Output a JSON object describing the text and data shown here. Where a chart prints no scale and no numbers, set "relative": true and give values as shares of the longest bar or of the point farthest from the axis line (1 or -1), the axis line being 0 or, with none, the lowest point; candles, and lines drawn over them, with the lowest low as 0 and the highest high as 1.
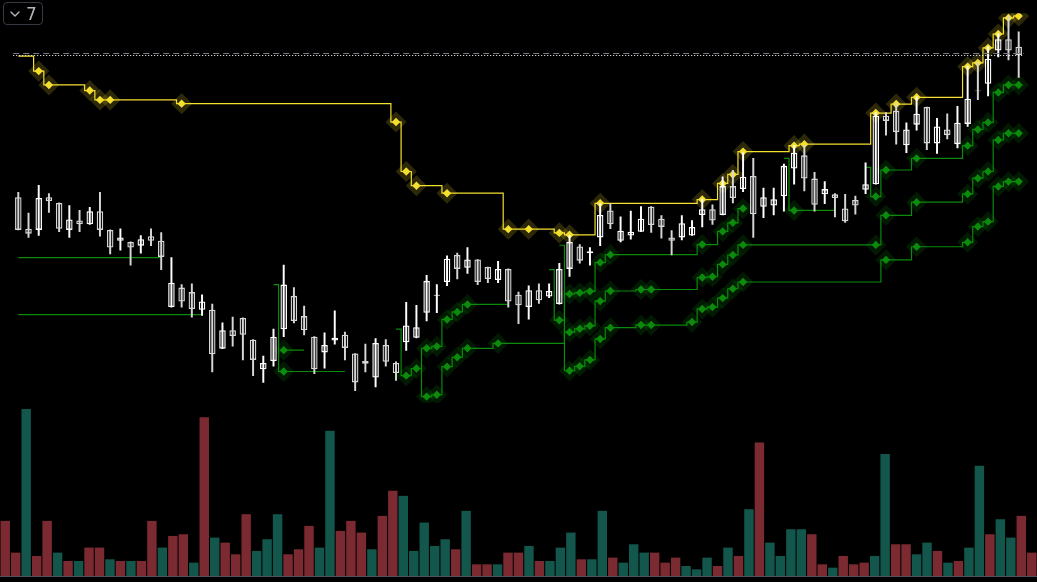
{
  "chart_data": [
    {
      "type": "candlestick",
      "categories": [
        null,
        null,
        null,
        null,
        null,
        null,
        null,
        null,
        null,
        null,
        null,
        null,
        null,
        null,
        null,
        null,
        null,
        null,
        null,
        null,
        null,
        null,
        null,
        null,
        null,
        null,
        null,
        null,
        null,
        null,
        null,
        null,
        null,
        null,
        null,
        null,
        null,
        null,
        null,
        null,
        null,
        null,
        null,
        null,
        null,
        null,
        null,
        null,
        null,
        null,
        null,
        null,
        null,
        null,
        null,
        null,
        null,
        null,
        null,
        null,
        null,
        null,
        null,
        null,
        null,
        null,
        null,
        null,
        null,
        null,
        null,
        null,
        null,
        null,
        null,
        null,
        null,
        null,
        null,
        null,
        null,
        null,
        null,
        null,
        null,
        null,
        null,
        null,
        null,
        null,
        null,
        null,
        null,
        null,
        null,
        null,
        null,
        null,
        null
      ],
      "relative": true,
      "tick_labels": false,
      "annotations": [
        "7"
      ],
      "ref_lines": [
        {
          "axis": "y",
          "value": 0.901,
          "color": "#787b86",
          "line_style": "dashed"
        },
        {
          "axis": "y",
          "value": 0.896,
          "color": "#ffffff",
          "line_style": "dotted"
        }
      ],
      "series": [
        {
          "colors": [
            "#d6d6d6",
            "#d6d6d6",
            "#ffffff",
            "#d6d6d6",
            "#d6d6d6",
            "#ffffff",
            "#d6d6d6",
            "#ffffff",
            "#d6d6d6",
            "#d6d6d6",
            "#ffffff",
            "#d6d6d6",
            "#ffffff",
            "#d6d6d6",
            "#d6d6d6",
            "#ffffff",
            "#d6d6d6",
            "#d6d6d6",
            "#ffffff",
            "#d6d6d6",
            "#ffffff",
            "#d6d6d6",
            "#d6d6d6",
            "#d6d6d6",
            "#ffffff",
            "#ffffff",
            "#ffffff",
            "#d6d6d6",
            "#d6d6d6",
            "#d6d6d6",
            "#ffffff",
            "#ffffff",
            "#d6d6d6",
            "#d6d6d6",
            "#d6d6d6",
            "#ffffff",
            "#d6d6d6",
            "#d6d6d6",
            "#ffffff",
            "#ffffff",
            "#ffffff",
            "#ffffff",
            "#ffffff",
            "#d6d6d6",
            "#ffffff",
            "#d6d6d6",
            "#d6d6d6",
            "#ffffff",
            "#d6d6d6",
            "#d6d6d6",
            "#ffffff",
            "#d6d6d6",
            "#ffffff",
            "#ffffff",
            "#ffffff",
            "#d6d6d6",
            "#ffffff",
            "#ffffff",
            "#d6d6d6",
            "#ffffff",
            "#ffffff",
            "#ffffff",
            "#d6d6d6",
            "#d6d6d6",
            "#d6d6d6",
            "#ffffff",
            "#ffffff",
            "#ffffff",
            "#d6d6d6",
            "#ffffff",
            "#d6d6d6",
            "#ffffff",
            "#d6d6d6",
            "#ffffff",
            "#ffffff",
            "#ffffff",
            "#ffffff",
            "#d6d6d6",
            "#d6d6d6",
            "#ffffff",
            "#d6d6d6",
            "#d6d6d6",
            "#d6d6d6",
            "#ffffff",
            "#ffffff",
            "#d6d6d6",
            "#d6d6d6",
            "#ffffff",
            "#ffffff",
            "#d6d6d6",
            "#ffffff",
            "#d6d6d6",
            "#ffffff",
            "#ffffff",
            "#d6d6d6",
            "#ffffff",
            "#ffffff",
            "#d6d6d6",
            "#d6d6d6"
          ],
          "ohlc": [
            [
              0.516,
              0.529,
              0.429,
              0.429
            ],
            [
              0.432,
              0.474,
              0.409,
              0.419
            ],
            [
              0.429,
              0.548,
              0.414,
              0.514
            ],
            [
              0.516,
              0.526,
              0.476,
              0.506
            ],
            [
              0.501,
              0.501,
              0.424,
              0.432
            ],
            [
              0.429,
              0.494,
              0.409,
              0.457
            ],
            [
              0.454,
              0.481,
              0.424,
              0.444
            ],
            [
              0.444,
              0.489,
              0.444,
              0.479
            ],
            [
              0.479,
              0.529,
              0.412,
              0.429
            ],
            [
              0.429,
              0.429,
              0.365,
              0.382
            ],
            [
              0.4,
              0.432,
              0.375,
              0.409
            ],
            [
              0.397,
              0.397,
              0.335,
              0.382
            ],
            [
              0.387,
              0.414,
              0.367,
              0.404
            ],
            [
              0.412,
              0.432,
              0.387,
              0.4
            ],
            [
              0.4,
              0.422,
              0.323,
              0.357
            ],
            [
              0.223,
              0.355,
              0.223,
              0.288
            ],
            [
              0.275,
              0.283,
              0.223,
              0.238
            ],
            [
              0.263,
              0.285,
              0.196,
              0.218
            ],
            [
              0.216,
              0.256,
              0.201,
              0.238
            ],
            [
              0.216,
              0.231,
              0.05,
              0.097
            ],
            [
              0.112,
              0.181,
              0.112,
              0.161
            ],
            [
              0.161,
              0.196,
              0.119,
              0.146
            ],
            [
              0.194,
              0.194,
              0.082,
              0.149
            ],
            [
              0.136,
              0.136,
              0.04,
              0.082
            ],
            [
              0.057,
              0.092,
              0.022,
              0.074
            ],
            [
              0.079,
              0.164,
              0.065,
              0.144
            ],
            [
              0.164,
              0.335,
              0.144,
              0.283
            ],
            [
              0.253,
              0.275,
              0.181,
              0.186
            ],
            [
              0.199,
              0.226,
              0.149,
              0.161
            ],
            [
              0.144,
              0.144,
              0.045,
              0.057
            ],
            [
              0.102,
              0.154,
              0.06,
              0.122
            ],
            [
              0.134,
              0.213,
              0.124,
              0.141
            ],
            [
              0.149,
              0.156,
              0.082,
              0.114
            ],
            [
              0.099,
              0.099,
              0,
              0.022
            ],
            [
              0.079,
              0.124,
              0.05,
              0.072
            ],
            [
              0.035,
              0.139,
              0.01,
              0.127
            ],
            [
              0.122,
              0.136,
              0.065,
              0.077
            ],
            [
              0.074,
              0.077,
              0.027,
              0.047
            ],
            [
              0.129,
              0.236,
              0.107,
              0.174
            ],
            [
              0.141,
              0.228,
              0.141,
              0.169
            ],
            [
              0.208,
              0.308,
              0.186,
              0.293
            ],
            [
              0.253,
              0.283,
              0.208,
              0.256
            ],
            [
              0.29,
              0.36,
              0.28,
              0.352
            ],
            [
              0.362,
              0.367,
              0.298,
              0.325
            ],
            [
              0.328,
              0.382,
              0.313,
              0.35
            ],
            [
              0.35,
              0.35,
              0.283,
              0.29
            ],
            [
              0.33,
              0.33,
              0.288,
              0.298
            ],
            [
              0.295,
              0.345,
              0.288,
              0.325
            ],
            [
              0.325,
              0.325,
              0.223,
              0.238
            ],
            [
              0.256,
              0.263,
              0.179,
              0.228
            ],
            [
              0.223,
              0.28,
              0.191,
              0.268
            ],
            [
              0.268,
              0.285,
              0.233,
              0.241
            ],
            [
              0.251,
              0.285,
              0.248,
              0.266
            ],
            [
              0.231,
              0.34,
              0.231,
              0.325
            ],
            [
              0.325,
              0.414,
              0.305,
              0.397
            ],
            [
              0.385,
              0.39,
              0.34,
              0.347
            ],
            [
              0.367,
              0.382,
              0.335,
              0.372
            ],
            [
              0.409,
              0.499,
              0.387,
              0.469
            ],
            [
              0.481,
              0.499,
              0.432,
              0.444
            ],
            [
              0.4,
              0.464,
              0.397,
              0.427
            ],
            [
              0.414,
              0.479,
              0.404,
              0.424
            ],
            [
              0.424,
              0.491,
              0.424,
              0.459
            ],
            [
              0.491,
              0.491,
              0.422,
              0.442
            ],
            [
              0.459,
              0.467,
              0.407,
              0.437
            ],
            [
              0.409,
              0.427,
              0.362,
              0.4
            ],
            [
              0.409,
              0.467,
              0.402,
              0.447
            ],
            [
              0.414,
              0.454,
              0.414,
              0.437
            ],
            [
              0.469,
              0.511,
              0.437,
              0.484
            ],
            [
              0.484,
              0.496,
              0.444,
              0.454
            ],
            [
              0.469,
              0.571,
              0.469,
              0.546
            ],
            [
              0.546,
              0.588,
              0.501,
              0.514
            ],
            [
              0.538,
              0.635,
              0.531,
              0.571
            ],
            [
              0.573,
              0.62,
              0.409,
              0.471
            ],
            [
              0.491,
              0.541,
              0.462,
              0.516
            ],
            [
              0.494,
              0.541,
              0.469,
              0.511
            ],
            [
              0.519,
              0.605,
              0.479,
              0.6
            ],
            [
              0.593,
              0.655,
              0.551,
              0.635
            ],
            [
              0.628,
              0.655,
              0.533,
              0.566
            ],
            [
              0.566,
              0.583,
              0.479,
              0.496
            ],
            [
              0.524,
              0.558,
              0.499,
              0.538
            ],
            [
              0.524,
              0.526,
              0.464,
              0.514
            ],
            [
              0.486,
              0.524,
              0.449,
              0.452
            ],
            [
              0.509,
              0.519,
              0.471,
              0.494
            ],
            [
              0.536,
              0.608,
              0.526,
              0.551
            ],
            [
              0.551,
              0.742,
              0.551,
              0.734
            ],
            [
              0.734,
              0.742,
              0.682,
              0.72
            ],
            [
              0.747,
              0.767,
              0.658,
              0.69
            ],
            [
              0.655,
              0.715,
              0.635,
              0.697
            ],
            [
              0.71,
              0.784,
              0.695,
              0.739
            ],
            [
              0.757,
              0.757,
              0.643,
              0.66
            ],
            [
              0.66,
              0.727,
              0.633,
              0.705
            ],
            [
              0.697,
              0.739,
              0.672,
              0.682
            ],
            [
              0.658,
              0.759,
              0.648,
              0.715
            ],
            [
              0.712,
              0.866,
              0.705,
              0.779
            ],
            [
              0.801,
              0.876,
              0.777,
              0.799
            ],
            [
              0.819,
              0.918,
              0.787,
              0.886
            ],
            [
              0.908,
              0.953,
              0.891,
              0.938
            ],
            [
              0.938,
              1,
              0.883,
              0.908
            ],
            [
              0.918,
              0.958,
              0.836,
              0.896
            ]
          ]
        },
        {
          "type": "step",
          "color": "#f5e02f",
          "values": [
            0.893,
            0.893,
            0.853,
            0.816,
            0.816,
            0.816,
            0.816,
            0.801,
            0.776,
            0.776,
            0.776,
            0.776,
            0.776,
            0.776,
            0.776,
            0.776,
            0.766,
            0.766,
            0.766,
            0.766,
            0.766,
            0.766,
            0.766,
            0.766,
            0.766,
            0.766,
            0.766,
            0.766,
            0.766,
            0.766,
            0.766,
            0.766,
            0.766,
            0.766,
            0.766,
            0.766,
            0.766,
            0.717,
            0.585,
            0.547,
            0.547,
            0.547,
            0.527,
            0.527,
            0.527,
            0.527,
            0.527,
            0.527,
            0.431,
            0.431,
            0.431,
            0.431,
            0.431,
            0.421,
            0.416,
            0.416,
            0.416,
            0.5,
            0.5,
            0.5,
            0.5,
            0.5,
            0.5,
            0.5,
            0.5,
            0.5,
            0.5,
            0.51,
            0.51,
            0.553,
            0.577,
            0.638,
            0.638,
            0.638,
            0.638,
            0.638,
            0.654,
            0.658,
            0.658,
            0.658,
            0.658,
            0.658,
            0.658,
            0.658,
            0.741,
            0.741,
            0.765,
            0.765,
            0.783,
            0.783,
            0.783,
            0.783,
            0.783,
            0.865,
            0.875,
            0.915,
            0.952,
            0.995,
            1
          ]
        },
        {
          "type": "scatter",
          "color": "#f5e02f",
          "marker": "diamond",
          "values": [
            null,
            null,
            0.853,
            0.816,
            null,
            null,
            null,
            0.801,
            0.776,
            0.776,
            null,
            null,
            null,
            null,
            null,
            null,
            0.766,
            null,
            null,
            null,
            null,
            null,
            null,
            null,
            null,
            null,
            null,
            null,
            null,
            null,
            null,
            null,
            null,
            null,
            null,
            null,
            null,
            0.717,
            0.585,
            0.547,
            null,
            null,
            0.527,
            null,
            null,
            null,
            null,
            null,
            0.431,
            null,
            0.431,
            null,
            null,
            0.421,
            0.416,
            null,
            null,
            0.5,
            null,
            null,
            null,
            null,
            null,
            null,
            null,
            null,
            null,
            0.51,
            null,
            0.553,
            0.577,
            0.638,
            null,
            null,
            null,
            null,
            0.654,
            0.658,
            null,
            null,
            null,
            null,
            null,
            null,
            0.741,
            null,
            0.765,
            null,
            0.783,
            null,
            null,
            null,
            null,
            0.865,
            0.875,
            0.915,
            0.952,
            0.995,
            1
          ]
        },
        {
          "type": "step",
          "color": "#0b8a0b",
          "values": [
            0.355,
            0.355,
            0.355,
            0.355,
            0.355,
            0.355,
            0.355,
            0.355,
            0.355,
            0.355,
            0.355,
            0.355,
            0.355,
            0.355,
            0.355,
            null,
            null,
            null,
            null,
            null,
            null,
            null,
            null,
            null,
            null,
            0.283,
            0.051,
            0.051,
            0.051,
            0.051,
            0.051,
            0.051,
            0.051,
            null,
            null,
            null,
            null,
            0.164,
            0.04,
            0.059,
            0.113,
            0.118,
            0.19,
            0.21,
            0.23,
            0.23,
            0.23,
            0.23,
            0.23,
            null,
            null,
            null,
            null,
            0.388,
            0.053,
            0.065,
            0.082,
            0.138,
            0.168,
            0.168,
            0.168,
            0.175,
            0.175,
            0.175,
            0.175,
            0.175,
            0.183,
            0.218,
            0.223,
            0.247,
            0.272,
            0.29,
            0.29,
            0.29,
            0.29,
            0.29,
            0.29,
            0.29,
            0.29,
            0.29,
            0.29,
            0.29,
            0.29,
            0.29,
            0.29,
            0.349,
            0.349,
            0.349,
            0.384,
            0.384,
            0.384,
            0.384,
            0.384,
            0.396,
            0.438,
            0.451,
            0.545,
            0.558,
            0.558
          ]
        },
        {
          "type": "scatter",
          "color": "#0b8a0b",
          "marker": "diamond",
          "values": [
            null,
            null,
            null,
            null,
            null,
            null,
            null,
            null,
            null,
            null,
            null,
            null,
            null,
            null,
            null,
            null,
            null,
            null,
            null,
            null,
            null,
            null,
            null,
            null,
            null,
            null,
            0.051,
            null,
            null,
            null,
            null,
            null,
            null,
            null,
            null,
            null,
            null,
            null,
            0.04,
            0.059,
            0.113,
            0.118,
            0.19,
            0.21,
            0.23,
            null,
            null,
            null,
            null,
            null,
            null,
            null,
            null,
            null,
            0.053,
            0.065,
            0.082,
            0.138,
            0.168,
            null,
            null,
            0.175,
            0.175,
            null,
            null,
            null,
            0.183,
            0.218,
            0.223,
            0.247,
            0.272,
            0.29,
            null,
            null,
            null,
            null,
            null,
            null,
            null,
            null,
            null,
            null,
            null,
            null,
            null,
            0.349,
            null,
            null,
            0.384,
            null,
            null,
            null,
            null,
            0.396,
            0.438,
            0.451,
            0.545,
            0.558,
            0.558
          ]
        },
        {
          "type": "step",
          "color": "#0b8a0b",
          "values": [
            0.203,
            0.203,
            0.203,
            0.203,
            0.203,
            0.203,
            0.203,
            0.203,
            0.203,
            0.203,
            0.203,
            0.203,
            0.203,
            0.203,
            0.203,
            0.203,
            0.203,
            0.203,
            0.203,
            null,
            null,
            null,
            null,
            null,
            null,
            null,
            0.108,
            0.108,
            0.108,
            null,
            null,
            null,
            null,
            null,
            null,
            null,
            null,
            null,
            null,
            0.059,
            -0.016,
            -0.011,
            0.064,
            0.089,
            0.113,
            0.113,
            0.113,
            0.126,
            0.126,
            0.126,
            0.126,
            0.126,
            0.126,
            0.126,
            0.156,
            0.165,
            0.173,
            0.239,
            0.266,
            0.266,
            0.266,
            0.27,
            0.27,
            0.27,
            0.27,
            0.27,
            0.27,
            0.302,
            0.304,
            0.337,
            0.362,
            0.389,
            0.389,
            0.389,
            0.389,
            0.389,
            0.389,
            0.389,
            0.389,
            0.389,
            0.389,
            0.389,
            0.389,
            0.389,
            0.389,
            0.468,
            0.468,
            0.468,
            0.503,
            0.503,
            0.503,
            0.503,
            0.503,
            0.525,
            0.567,
            0.585,
            0.669,
            0.687,
            0.687
          ]
        },
        {
          "type": "scatter",
          "color": "#0b8a0b",
          "marker": "diamond",
          "values": [
            null,
            null,
            null,
            null,
            null,
            null,
            null,
            null,
            null,
            null,
            null,
            null,
            null,
            null,
            null,
            null,
            null,
            null,
            null,
            null,
            null,
            null,
            null,
            null,
            null,
            null,
            0.108,
            null,
            null,
            null,
            null,
            null,
            null,
            null,
            null,
            null,
            null,
            null,
            null,
            null,
            -0.016,
            -0.011,
            0.064,
            0.089,
            0.113,
            null,
            null,
            0.126,
            null,
            null,
            null,
            null,
            null,
            null,
            0.156,
            0.165,
            0.173,
            0.239,
            0.266,
            null,
            null,
            0.27,
            0.27,
            null,
            null,
            null,
            null,
            0.302,
            0.304,
            0.337,
            0.362,
            0.389,
            null,
            null,
            null,
            null,
            null,
            null,
            null,
            null,
            null,
            null,
            null,
            null,
            0.389,
            0.468,
            null,
            null,
            0.503,
            null,
            null,
            null,
            null,
            0.525,
            0.567,
            0.585,
            0.669,
            0.687,
            0.687
          ]
        },
        {
          "type": "step",
          "color": "#0b8a0b",
          "values": [
            null,
            null,
            null,
            null,
            null,
            null,
            null,
            null,
            null,
            null,
            null,
            null,
            null,
            null,
            null,
            null,
            null,
            null,
            null,
            null,
            null,
            null,
            null,
            null,
            null,
            null,
            null,
            null,
            null,
            null,
            null,
            null,
            null,
            null,
            null,
            null,
            null,
            null,
            null,
            null,
            null,
            null,
            null,
            null,
            null,
            null,
            null,
            null,
            null,
            null,
            null,
            null,
            0.323,
            0.188,
            0.258,
            0.261,
            0.265,
            0.342,
            0.363,
            0.363,
            0.363,
            0.363,
            0.363,
            0.363,
            0.363,
            0.363,
            0.363,
            0.39,
            0.39,
            0.425,
            0.448,
            0.486,
            null,
            null,
            null,
            0.62,
            0.481,
            0.481,
            0.481,
            0.481,
            0.481,
            null,
            null,
            0.596,
            0.518,
            0.589,
            0.589,
            0.589,
            0.62,
            0.62,
            0.62,
            0.62,
            0.62,
            0.654,
            0.697,
            0.716,
            0.796,
            0.816,
            0.816
          ]
        },
        {
          "type": "scatter",
          "color": "#0b8a0b",
          "marker": "diamond",
          "values": [
            null,
            null,
            null,
            null,
            null,
            null,
            null,
            null,
            null,
            null,
            null,
            null,
            null,
            null,
            null,
            null,
            null,
            null,
            null,
            null,
            null,
            null,
            null,
            null,
            null,
            null,
            null,
            null,
            null,
            null,
            null,
            null,
            null,
            null,
            null,
            null,
            null,
            null,
            null,
            null,
            null,
            null,
            null,
            null,
            null,
            null,
            null,
            null,
            null,
            null,
            null,
            null,
            null,
            0.188,
            0.258,
            0.261,
            0.265,
            0.342,
            0.363,
            null,
            null,
            null,
            null,
            null,
            null,
            null,
            null,
            0.39,
            null,
            0.425,
            0.448,
            0.486,
            null,
            null,
            null,
            null,
            0.481,
            null,
            null,
            null,
            null,
            null,
            null,
            null,
            0.518,
            0.589,
            null,
            null,
            0.62,
            null,
            null,
            null,
            null,
            0.654,
            0.697,
            0.716,
            0.796,
            0.816,
            0.816
          ]
        }
      ]
    },
    {
      "type": "bar",
      "categories": [
        null,
        null,
        null,
        null,
        null,
        null,
        null,
        null,
        null,
        null,
        null,
        null,
        null,
        null,
        null,
        null,
        null,
        null,
        null,
        null,
        null,
        null,
        null,
        null,
        null,
        null,
        null,
        null,
        null,
        null,
        null,
        null,
        null,
        null,
        null,
        null,
        null,
        null,
        null,
        null,
        null,
        null,
        null,
        null,
        null,
        null,
        null,
        null,
        null,
        null,
        null,
        null,
        null,
        null,
        null,
        null,
        null,
        null,
        null,
        null,
        null,
        null,
        null,
        null,
        null,
        null,
        null,
        null,
        null,
        null,
        null,
        null,
        null,
        null,
        null,
        null,
        null,
        null,
        null,
        null,
        null,
        null,
        null,
        null,
        null,
        null,
        null,
        null,
        null,
        null,
        null,
        null,
        null,
        null,
        null,
        null,
        null,
        null,
        null
      ],
      "relative": true,
      "tick_labels": false,
      "values": [
        0.33,
        0.14,
        1,
        0.12,
        0.33,
        0.14,
        0.09,
        0.09,
        0.17,
        0.17,
        0.1,
        0.09,
        0.09,
        0.09,
        0.33,
        0.17,
        0.24,
        0.25,
        0.08,
        0.95,
        0.23,
        0.2,
        0.13,
        0.37,
        0.15,
        0.22,
        0.37,
        0.13,
        0.16,
        0.3,
        0.17,
        0.87,
        0.27,
        0.33,
        0.26,
        0.16,
        0.36,
        0.51,
        0.48,
        0.15,
        0.32,
        0.18,
        0.22,
        0.16,
        0.39,
        0.07,
        0.07,
        0.07,
        0.14,
        0.14,
        0.18,
        0.09,
        0.09,
        0.17,
        0.26,
        0.1,
        0.1,
        0.39,
        0.11,
        0.08,
        0.19,
        0.14,
        0.14,
        0.08,
        0.11,
        0.06,
        0.04,
        0.11,
        0.06,
        0.17,
        0.12,
        0.4,
        0.8,
        0.2,
        0.12,
        0.28,
        0.28,
        0.25,
        0.07,
        0.05,
        0.12,
        0.07,
        0.08,
        0.12,
        0.73,
        0.19,
        0.19,
        0.13,
        0.2,
        0.15,
        0.08,
        0.09,
        0.17,
        0.66,
        0.25,
        0.34,
        0.23,
        0.36,
        0.14
      ],
      "colors": [
        "#7c2a31",
        "#7c2a31",
        "#12564c",
        "#7c2a31",
        "#7c2a31",
        "#12564c",
        "#7c2a31",
        "#12564c",
        "#7c2a31",
        "#7c2a31",
        "#12564c",
        "#7c2a31",
        "#12564c",
        "#7c2a31",
        "#7c2a31",
        "#12564c",
        "#7c2a31",
        "#7c2a31",
        "#12564c",
        "#7c2a31",
        "#12564c",
        "#7c2a31",
        "#7c2a31",
        "#7c2a31",
        "#12564c",
        "#12564c",
        "#12564c",
        "#7c2a31",
        "#7c2a31",
        "#7c2a31",
        "#12564c",
        "#12564c",
        "#7c2a31",
        "#7c2a31",
        "#7c2a31",
        "#12564c",
        "#7c2a31",
        "#7c2a31",
        "#12564c",
        "#12564c",
        "#12564c",
        "#12564c",
        "#12564c",
        "#7c2a31",
        "#12564c",
        "#7c2a31",
        "#7c2a31",
        "#12564c",
        "#7c2a31",
        "#7c2a31",
        "#12564c",
        "#7c2a31",
        "#12564c",
        "#12564c",
        "#12564c",
        "#7c2a31",
        "#12564c",
        "#12564c",
        "#7c2a31",
        "#12564c",
        "#12564c",
        "#12564c",
        "#7c2a31",
        "#7c2a31",
        "#7c2a31",
        "#12564c",
        "#12564c",
        "#12564c",
        "#7c2a31",
        "#12564c",
        "#7c2a31",
        "#12564c",
        "#7c2a31",
        "#12564c",
        "#12564c",
        "#12564c",
        "#12564c",
        "#7c2a31",
        "#7c2a31",
        "#12564c",
        "#7c2a31",
        "#7c2a31",
        "#7c2a31",
        "#12564c",
        "#12564c",
        "#7c2a31",
        "#7c2a31",
        "#12564c",
        "#12564c",
        "#7c2a31",
        "#12564c",
        "#7c2a31",
        "#12564c",
        "#12564c",
        "#7c2a31",
        "#12564c",
        "#12564c",
        "#7c2a31",
        "#7c2a31"
      ]
    }
  ]
}
